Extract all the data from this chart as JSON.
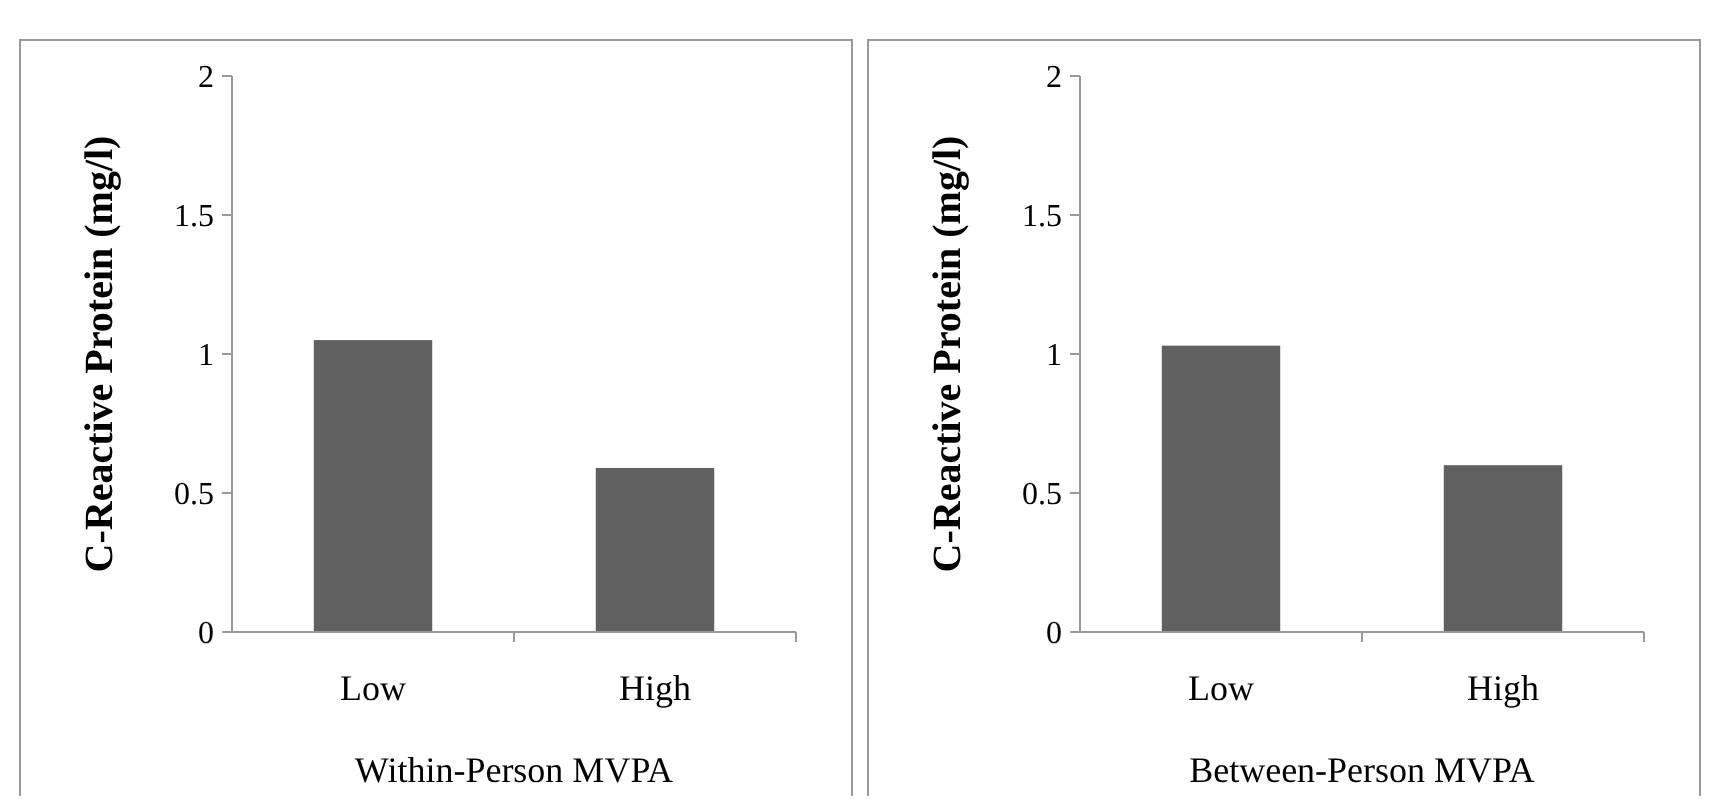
{
  "chart_data": [
    {
      "type": "bar",
      "categories": [
        "Low",
        "High"
      ],
      "values": [
        1.05,
        0.59
      ],
      "color": "#606060",
      "ylim": [
        0,
        2
      ],
      "yticks": [
        0,
        0.5,
        1,
        1.5,
        2
      ],
      "ylabel": "C-Reactive Protein (mg/l)",
      "xlabel": "Within-Person MVPA",
      "grid": false
    },
    {
      "type": "bar",
      "categories": [
        "Low",
        "High"
      ],
      "values": [
        1.03,
        0.6
      ],
      "color": "#606060",
      "ylim": [
        0,
        2
      ],
      "yticks": [
        0,
        0.5,
        1,
        1.5,
        2
      ],
      "ylabel": "C-Reactive Protein (mg/l)",
      "xlabel": "Between-Person MVPA",
      "grid": false
    }
  ]
}
